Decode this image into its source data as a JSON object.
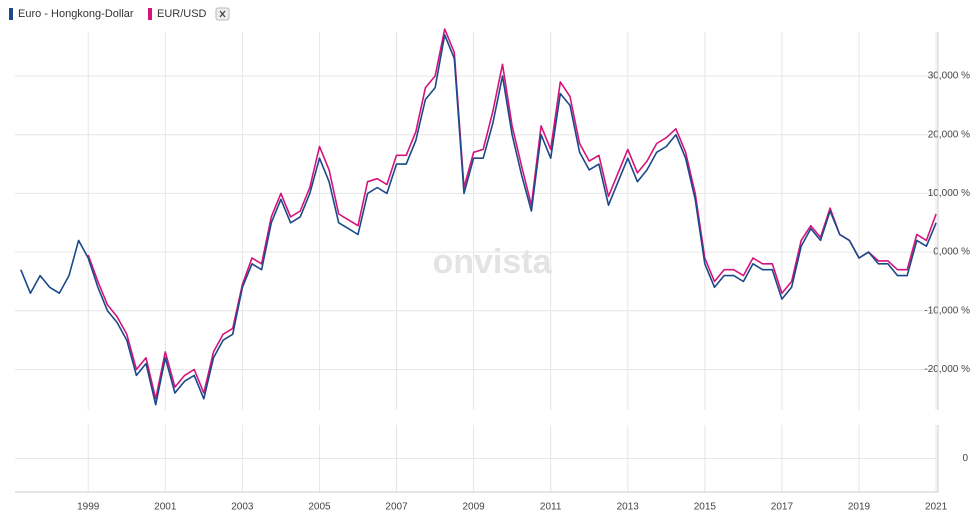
{
  "legend": [
    "Euro - Hongkong-Dollar",
    "EUR/USD"
  ],
  "watermark": "onvista",
  "chart_data": [
    {
      "type": "line",
      "x": [
        1997.25,
        1997.5,
        1997.75,
        1998,
        1998.25,
        1998.5,
        1998.75,
        1999,
        1999.25,
        1999.5,
        1999.75,
        2000,
        2000.25,
        2000.5,
        2000.75,
        2001,
        2001.25,
        2001.5,
        2001.75,
        2002,
        2002.25,
        2002.5,
        2002.75,
        2003,
        2003.25,
        2003.5,
        2003.75,
        2004,
        2004.25,
        2004.5,
        2004.75,
        2005,
        2005.25,
        2005.5,
        2005.75,
        2006,
        2006.25,
        2006.5,
        2006.75,
        2007,
        2007.25,
        2007.5,
        2007.75,
        2008,
        2008.25,
        2008.5,
        2008.75,
        2009,
        2009.25,
        2009.5,
        2009.75,
        2010,
        2010.25,
        2010.5,
        2010.75,
        2011,
        2011.25,
        2011.5,
        2011.75,
        2012,
        2012.25,
        2012.5,
        2012.75,
        2013,
        2013.25,
        2013.5,
        2013.75,
        2014,
        2014.25,
        2014.5,
        2014.75,
        2015,
        2015.25,
        2015.5,
        2015.75,
        2016,
        2016.25,
        2016.5,
        2016.75,
        2017,
        2017.25,
        2017.5,
        2017.75,
        2018,
        2018.25,
        2018.5,
        2018.75,
        2019,
        2019.25,
        2019.5,
        2019.75,
        2020,
        2020.25,
        2020.5,
        2020.75,
        2021
      ],
      "series": [
        {
          "name": "EUR/USD",
          "color": "#d4147a",
          "values": [
            null,
            null,
            null,
            null,
            null,
            null,
            null,
            -0.5,
            -5,
            -9,
            -11,
            -14,
            -20,
            -18,
            -25,
            -17,
            -23,
            -21,
            -20,
            -24,
            -17,
            -14,
            -13,
            -5.5,
            -1,
            -2,
            6,
            10,
            6,
            7,
            11,
            18,
            14,
            6.5,
            5.5,
            4.5,
            12,
            12.5,
            11.5,
            16.5,
            16.5,
            20.5,
            28,
            30,
            38,
            34,
            11,
            17,
            17.5,
            24,
            32,
            21.5,
            14.5,
            8,
            21.5,
            17.5,
            29,
            26.5,
            18.5,
            15.5,
            16.5,
            9.5,
            13.5,
            17.5,
            13.5,
            15.5,
            18.5,
            19.5,
            21,
            17,
            10,
            -1,
            -5,
            -3,
            -3,
            -4,
            -1,
            -2,
            -2,
            -7,
            -5,
            2,
            4.5,
            2.5,
            7.5,
            3,
            2,
            -1,
            0,
            -1.5,
            -1.5,
            -3,
            -3,
            3,
            2,
            6.5
          ]
        },
        {
          "name": "Euro - Hongkong-Dollar",
          "color": "#1a4a8a",
          "values": [
            -3,
            -7,
            -4,
            -6,
            -7,
            -4,
            2,
            -1,
            -6,
            -10,
            -12,
            -15,
            -21,
            -19,
            -26,
            -18,
            -24,
            -22,
            -21,
            -25,
            -18,
            -15,
            -14,
            -6,
            -2,
            -3,
            5,
            9,
            5,
            6,
            10,
            16,
            12,
            5,
            4,
            3,
            10,
            11,
            10,
            15,
            15,
            19,
            26,
            28,
            37,
            33,
            10,
            16,
            16,
            22,
            30,
            20,
            13,
            7,
            20,
            16,
            27,
            25,
            17,
            14,
            15,
            8,
            12,
            16,
            12,
            14,
            17,
            18,
            20,
            16,
            9,
            -2,
            -6,
            -4,
            -4,
            -5,
            -2,
            -3,
            -3,
            -8,
            -6,
            1,
            4,
            2,
            7,
            3,
            2,
            -1,
            0,
            -2,
            -2,
            -4,
            -4,
            2,
            1,
            5
          ]
        }
      ],
      "xlim": [
        1997.1,
        2021.05
      ],
      "xticks": [
        1999,
        2001,
        2003,
        2005,
        2007,
        2009,
        2011,
        2013,
        2015,
        2017,
        2019,
        2021
      ],
      "ylim": [
        -26.9,
        37.5
      ],
      "yticks": [
        {
          "value": 30,
          "label": "30,000 %"
        },
        {
          "value": 20,
          "label": "20,000 %"
        },
        {
          "value": 10,
          "label": "10,000 %"
        },
        {
          "value": 0,
          "label": "0,000 %"
        },
        {
          "value": -10,
          "label": "-10,000 %"
        },
        {
          "value": -20,
          "label": "-20,000 %"
        }
      ],
      "grid": true
    },
    {
      "type": "panel",
      "yticks": [
        0
      ]
    }
  ]
}
